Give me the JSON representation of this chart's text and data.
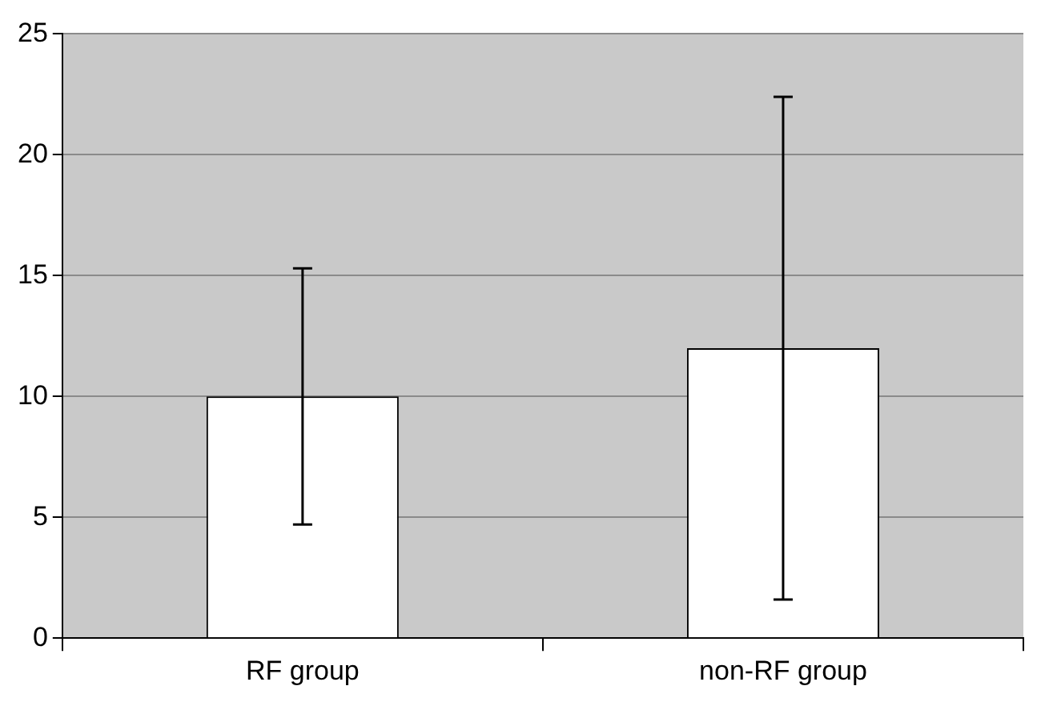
{
  "chart_data": {
    "type": "bar",
    "categories": [
      "RF group",
      "non-RF group"
    ],
    "values": [
      10,
      12
    ],
    "errors": [
      5.3,
      10.4
    ],
    "color": "#ffffff",
    "ylim": [
      0,
      25
    ],
    "yticks": [
      0,
      5,
      10,
      15,
      20,
      25
    ],
    "grid": "y"
  }
}
